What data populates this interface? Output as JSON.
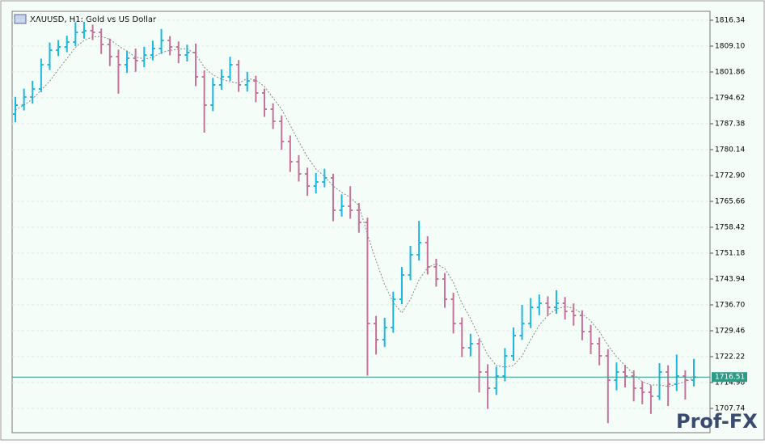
{
  "chart_data": {
    "type": "ohlc",
    "title": "XAUUSD, H1:  Gold vs US Dollar",
    "open": [
      1790.1,
      1792.58,
      1794.85,
      1797.11,
      1803.9,
      1807.97,
      1808.87,
      1810.23,
      1812.95,
      1813.4,
      1812.95,
      1809.55,
      1806.16,
      1803.9,
      1805.71,
      1805.03,
      1806.61,
      1808.42,
      1810.68,
      1808.87,
      1806.61,
      1807.29,
      1800.5,
      1792.58,
      1798.24,
      1800.5,
      1803.9,
      1798.24,
      1799.37,
      1795.98,
      1791.45,
      1788.06,
      1782.4,
      1776.75,
      1773.35,
      1769.96,
      1771.09,
      1772.22,
      1763.17,
      1764.3,
      1763.17,
      1759.78,
      1731.49,
      1726.97,
      1730.37,
      1738.28,
      1745.07,
      1750.73,
      1754.12,
      1747.33,
      1743.94,
      1738.28,
      1731.49,
      1724.71,
      1725.84,
      1717.92,
      1713.39,
      1716.79,
      1722.44,
      1728.1,
      1731.49,
      1736.02,
      1737.15,
      1736.02,
      1737.15,
      1734.89,
      1733.76,
      1729.23,
      1725.84,
      1722.44,
      1715.66,
      1717.92,
      1716.79,
      1713.39,
      1712.26,
      1711.13,
      1717.92,
      1714.53,
      1716.79,
      1715.66
    ],
    "high": [
      1794.9,
      1797.2,
      1799.4,
      1805.6,
      1810.1,
      1810.8,
      1812.0,
      1815.8,
      1815.9,
      1815.1,
      1814.0,
      1811.2,
      1808.1,
      1807.8,
      1808.4,
      1808.9,
      1810.6,
      1813.9,
      1811.9,
      1810.4,
      1809.5,
      1809.8,
      1802.3,
      1800.2,
      1802.6,
      1806.1,
      1805.2,
      1801.9,
      1800.8,
      1797.2,
      1793.1,
      1789.7,
      1784.1,
      1778.6,
      1775.1,
      1773.6,
      1774.8,
      1773.4,
      1767.6,
      1769.9,
      1765.2,
      1761.1,
      1733.6,
      1733.1,
      1740.4,
      1747.3,
      1753.2,
      1760.2,
      1755.9,
      1749.6,
      1745.6,
      1740.1,
      1733.2,
      1728.6,
      1727.2,
      1720.1,
      1719.4,
      1724.6,
      1730.4,
      1736.7,
      1738.6,
      1739.6,
      1739.1,
      1740.8,
      1738.9,
      1737.1,
      1735.2,
      1731.1,
      1727.6,
      1724.3,
      1720.6,
      1719.9,
      1718.4,
      1715.3,
      1714.2,
      1720.4,
      1719.8,
      1722.8,
      1718.4,
      1721.6
    ],
    "low": [
      1787.8,
      1791.1,
      1793.0,
      1796.2,
      1802.4,
      1806.3,
      1807.4,
      1809.1,
      1811.2,
      1810.8,
      1806.9,
      1803.5,
      1795.8,
      1801.6,
      1801.9,
      1803.2,
      1805.1,
      1806.9,
      1806.5,
      1804.3,
      1804.8,
      1797.9,
      1784.9,
      1790.9,
      1796.9,
      1799.4,
      1796.3,
      1796.4,
      1793.4,
      1789.3,
      1785.9,
      1780.1,
      1773.9,
      1771.2,
      1767.2,
      1767.9,
      1769.6,
      1760.1,
      1761.4,
      1760.8,
      1756.9,
      1716.9,
      1722.8,
      1724.9,
      1728.9,
      1736.9,
      1743.6,
      1749.1,
      1745.2,
      1741.8,
      1735.9,
      1728.7,
      1722.1,
      1722.3,
      1712.2,
      1707.6,
      1711.5,
      1715.3,
      1721.1,
      1726.9,
      1730.2,
      1733.8,
      1733.6,
      1734.2,
      1732.6,
      1730.9,
      1726.8,
      1722.9,
      1719.8,
      1703.6,
      1712.8,
      1713.6,
      1709.7,
      1708.9,
      1706.2,
      1710.1,
      1708.4,
      1712.6,
      1710.2,
      1713.9
    ],
    "close": [
      1792.58,
      1794.85,
      1797.11,
      1803.9,
      1807.97,
      1808.87,
      1810.23,
      1812.95,
      1813.4,
      1812.95,
      1809.55,
      1806.16,
      1803.9,
      1805.71,
      1805.03,
      1806.61,
      1808.42,
      1810.68,
      1808.87,
      1806.61,
      1807.29,
      1800.5,
      1792.58,
      1798.24,
      1800.5,
      1803.9,
      1798.24,
      1799.37,
      1795.98,
      1791.45,
      1788.06,
      1782.4,
      1776.75,
      1773.35,
      1769.96,
      1771.09,
      1772.22,
      1763.17,
      1764.3,
      1763.17,
      1759.78,
      1731.49,
      1726.97,
      1730.37,
      1738.28,
      1745.07,
      1750.73,
      1754.12,
      1747.33,
      1743.94,
      1738.28,
      1731.49,
      1724.71,
      1725.84,
      1717.92,
      1713.39,
      1716.79,
      1722.44,
      1728.1,
      1731.49,
      1736.02,
      1737.15,
      1736.02,
      1737.15,
      1734.89,
      1733.76,
      1729.23,
      1725.84,
      1722.44,
      1715.66,
      1717.92,
      1716.79,
      1713.39,
      1712.26,
      1711.13,
      1717.92,
      1714.53,
      1716.79,
      1715.66,
      1716.51
    ],
    "up_color": "#1fb6e0",
    "down_color": "#c7719b",
    "ma": {
      "color": "#8a8a8a",
      "values": [
        1791.2,
        1792.6,
        1794.3,
        1796.8,
        1799.28,
        1802.54,
        1805.62,
        1808.78,
        1810.68,
        1811.68,
        1811.82,
        1811.0,
        1809.19,
        1807.65,
        1806.07,
        1805.48,
        1805.93,
        1807.29,
        1807.92,
        1808.24,
        1808.37,
        1806.79,
        1803.17,
        1801.04,
        1799.82,
        1799.14,
        1798.69,
        1800.05,
        1799.6,
        1797.79,
        1794.62,
        1791.45,
        1786.93,
        1782.4,
        1778.1,
        1774.71,
        1772.67,
        1769.96,
        1768.15,
        1766.79,
        1764.53,
        1756.38,
        1749.14,
        1742.36,
        1737.38,
        1734.44,
        1738.28,
        1743.71,
        1747.11,
        1748.24,
        1746.88,
        1743.03,
        1737.15,
        1732.85,
        1727.65,
        1722.67,
        1719.73,
        1719.28,
        1719.73,
        1722.44,
        1726.97,
        1731.04,
        1733.76,
        1735.57,
        1736.25,
        1735.79,
        1734.21,
        1732.17,
        1729.23,
        1725.39,
        1722.22,
        1719.73,
        1717.24,
        1715.2,
        1714.3,
        1714.3,
        1713.85,
        1714.53,
        1715.21,
        1716.28
      ]
    },
    "ylim": [
      1700.95,
      1818.83
    ],
    "yticks": [
      1816.34,
      {
        "value": 1809.1,
        "label": "1809.10"
      },
      1801.86,
      1794.62,
      1787.38,
      1780.14,
      {
        "value": 1772.9,
        "label": "1772.90"
      },
      1765.66,
      1758.42,
      1751.18,
      1743.94,
      {
        "value": 1736.7,
        "label": "1736.70"
      },
      1729.46,
      1722.22,
      1714.98,
      1707.74
    ],
    "grid": true,
    "current_price": 1716.51,
    "current_color": "#2a9d87",
    "logo": "Prof-FX"
  }
}
